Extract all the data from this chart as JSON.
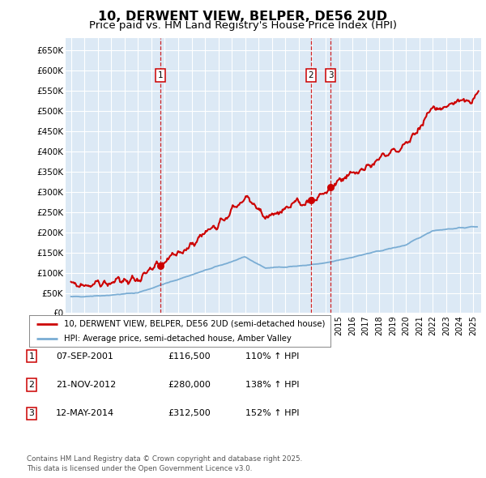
{
  "title": "10, DERWENT VIEW, BELPER, DE56 2UD",
  "subtitle": "Price paid vs. HM Land Registry's House Price Index (HPI)",
  "title_fontsize": 11.5,
  "subtitle_fontsize": 9.5,
  "ylim": [
    0,
    680000
  ],
  "yticks": [
    0,
    50000,
    100000,
    150000,
    200000,
    250000,
    300000,
    350000,
    400000,
    450000,
    500000,
    550000,
    600000,
    650000
  ],
  "ytick_labels": [
    "£0",
    "£50K",
    "£100K",
    "£150K",
    "£200K",
    "£250K",
    "£300K",
    "£350K",
    "£400K",
    "£450K",
    "£500K",
    "£550K",
    "£600K",
    "£650K"
  ],
  "xlim_start": 1994.6,
  "xlim_end": 2025.6,
  "plot_bg_color": "#dce9f5",
  "grid_color": "#ffffff",
  "red_line_color": "#cc0000",
  "blue_line_color": "#7aadd4",
  "sale_dates_decimal": [
    2001.68,
    2012.9,
    2014.37
  ],
  "sale_prices": [
    116500,
    280000,
    312500
  ],
  "sale_labels": [
    "1",
    "2",
    "3"
  ],
  "table_rows": [
    [
      "1",
      "07-SEP-2001",
      "£116,500",
      "110% ↑ HPI"
    ],
    [
      "2",
      "21-NOV-2012",
      "£280,000",
      "138% ↑ HPI"
    ],
    [
      "3",
      "12-MAY-2014",
      "£312,500",
      "152% ↑ HPI"
    ]
  ],
  "legend_line1": "10, DERWENT VIEW, BELPER, DE56 2UD (semi-detached house)",
  "legend_line2": "HPI: Average price, semi-detached house, Amber Valley",
  "footnote": "Contains HM Land Registry data © Crown copyright and database right 2025.\nThis data is licensed under the Open Government Licence v3.0."
}
